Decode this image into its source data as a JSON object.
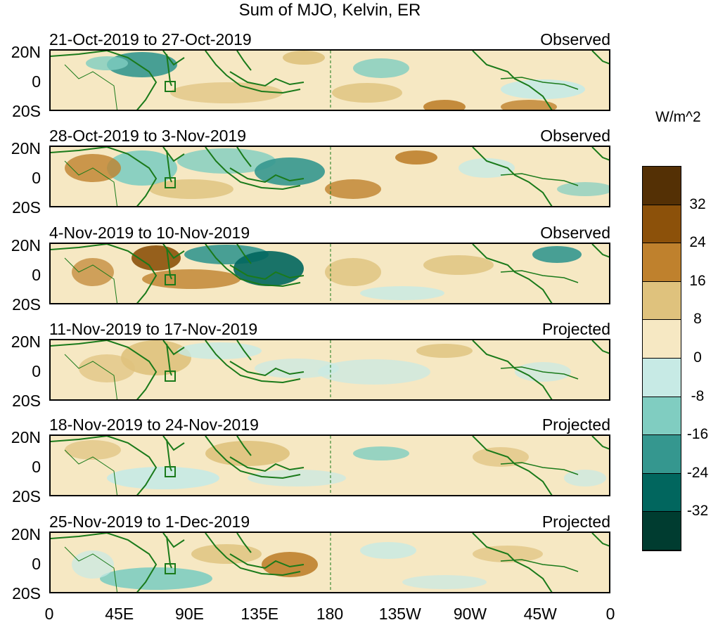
{
  "title": "Sum of MJO, Kelvin, ER",
  "panels": [
    {
      "label": "21-Oct-2019 to 27-Oct-2019",
      "status": "Observed"
    },
    {
      "label": "28-Oct-2019 to 3-Nov-2019",
      "status": "Observed"
    },
    {
      "label": "4-Nov-2019 to 10-Nov-2019",
      "status": "Observed"
    },
    {
      "label": "11-Nov-2019 to 17-Nov-2019",
      "status": "Projected"
    },
    {
      "label": "18-Nov-2019 to 24-Nov-2019",
      "status": "Projected"
    },
    {
      "label": "25-Nov-2019 to 1-Dec-2019",
      "status": "Projected"
    }
  ],
  "y_axis": {
    "top": "20N",
    "mid": "0",
    "bottom": "20S"
  },
  "x_axis": [
    "0",
    "45E",
    "90E",
    "135E",
    "180",
    "135W",
    "90W",
    "45W",
    "0"
  ],
  "colorbar": {
    "units": "W/m^2",
    "labels": [
      "32",
      "24",
      "16",
      "8",
      "0",
      "-8",
      "-16",
      "-24",
      "-32"
    ],
    "colors": [
      "#543005",
      "#8c510a",
      "#bf812d",
      "#dfc27d",
      "#f6e8c3",
      "#c7eae5",
      "#80cdc1",
      "#35978f",
      "#01665e",
      "#003c30"
    ]
  }
}
